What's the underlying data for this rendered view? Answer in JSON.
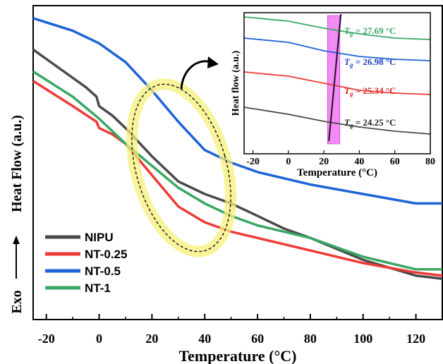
{
  "chart_data": {
    "type": "line",
    "main": {
      "xlabel": "Temperature (°C)",
      "ylabel_main": "Heat Flow (a.u.)",
      "ylabel_exo": "Exo",
      "xlim": [
        -25,
        130
      ],
      "xticks": [
        -20,
        0,
        20,
        40,
        60,
        80,
        100,
        120
      ],
      "series": [
        {
          "name": "NIPU",
          "color": "#4a4a4a",
          "x": [
            -25,
            -15,
            -5,
            -1,
            0,
            5,
            10,
            20,
            30,
            40,
            50,
            60,
            70,
            80,
            100,
            120,
            130
          ],
          "y": [
            0.86,
            0.8,
            0.74,
            0.71,
            0.68,
            0.65,
            0.61,
            0.52,
            0.44,
            0.4,
            0.37,
            0.33,
            0.29,
            0.26,
            0.19,
            0.14,
            0.13
          ]
        },
        {
          "name": "NT-0.25",
          "color": "#ee3a36",
          "x": [
            -25,
            -10,
            -1,
            0,
            5,
            10,
            15,
            20,
            30,
            40,
            50,
            60,
            70,
            80,
            100,
            120,
            130
          ],
          "y": [
            0.76,
            0.68,
            0.63,
            0.61,
            0.59,
            0.56,
            0.51,
            0.46,
            0.36,
            0.31,
            0.28,
            0.26,
            0.24,
            0.22,
            0.18,
            0.15,
            0.14
          ]
        },
        {
          "name": "NT-0.5",
          "color": "#1e63d8",
          "x": [
            -25,
            -10,
            0,
            10,
            20,
            30,
            40,
            50,
            60,
            80,
            100,
            120,
            130
          ],
          "y": [
            0.96,
            0.92,
            0.88,
            0.82,
            0.73,
            0.63,
            0.54,
            0.5,
            0.47,
            0.43,
            0.4,
            0.37,
            0.37
          ]
        },
        {
          "name": "NT-1",
          "color": "#3aa765",
          "x": [
            -25,
            -10,
            0,
            10,
            20,
            30,
            40,
            50,
            60,
            70,
            80,
            100,
            120,
            130
          ],
          "y": [
            0.79,
            0.71,
            0.64,
            0.56,
            0.49,
            0.42,
            0.37,
            0.33,
            0.3,
            0.28,
            0.26,
            0.2,
            0.16,
            0.16
          ]
        }
      ]
    },
    "inset": {
      "xlabel": "Temperature (°C)",
      "ylabel": "Heat flow (a.u.)",
      "xlim": [
        -25,
        80
      ],
      "xticks": [
        -20,
        0,
        20,
        40,
        60,
        80
      ],
      "highlight_band": [
        22,
        29
      ],
      "series": [
        {
          "name": "NIPU",
          "color": "#4a4a4a",
          "x": [
            -25,
            0,
            20,
            40,
            60,
            80
          ],
          "y": [
            0.33,
            0.28,
            0.23,
            0.19,
            0.16,
            0.14
          ]
        },
        {
          "name": "NT-0.25",
          "color": "#ee3a36",
          "x": [
            -25,
            0,
            20,
            40,
            60,
            80
          ],
          "y": [
            0.58,
            0.55,
            0.5,
            0.45,
            0.43,
            0.42
          ]
        },
        {
          "name": "NT-0.5",
          "color": "#1e63d8",
          "x": [
            -25,
            0,
            20,
            40,
            60,
            80
          ],
          "y": [
            0.82,
            0.79,
            0.73,
            0.69,
            0.67,
            0.66
          ]
        },
        {
          "name": "NT-1",
          "color": "#3aa765",
          "x": [
            -25,
            0,
            20,
            40,
            60,
            80
          ],
          "y": [
            0.97,
            0.94,
            0.89,
            0.85,
            0.82,
            0.81
          ]
        }
      ],
      "annotations": [
        {
          "label": "T",
          "sub": "g",
          "value": " = 27.69 °C",
          "color": "#3aa765"
        },
        {
          "label": "T",
          "sub": "g",
          "value": " = 26.98 °C",
          "color": "#1e3fc2"
        },
        {
          "label": "T",
          "sub": "g",
          "value": " = 25.34 °C",
          "color": "#e0201c"
        },
        {
          "label": "T",
          "sub": "g",
          "value": " = 24.25 °C",
          "color": "#222222"
        }
      ]
    }
  }
}
